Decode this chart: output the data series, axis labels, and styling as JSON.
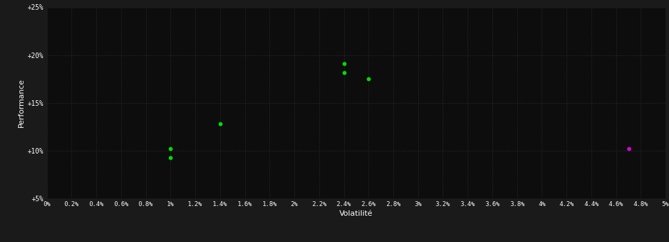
{
  "background_color": "#1a1a1a",
  "plot_bg_color": "#0d0d0d",
  "grid_color": "#333333",
  "text_color": "#ffffff",
  "xlabel": "Volatilité",
  "ylabel": "Performance",
  "xlim": [
    0.0,
    0.05
  ],
  "ylim": [
    0.05,
    0.25
  ],
  "xtick_step": 0.002,
  "ytick_vals": [
    0.05,
    0.1,
    0.15,
    0.2,
    0.25
  ],
  "ytick_labels": [
    "+5%",
    "+10%",
    "+15%",
    "+20%",
    "+25%"
  ],
  "green_points": [
    [
      0.01,
      0.102
    ],
    [
      0.01,
      0.093
    ],
    [
      0.014,
      0.128
    ],
    [
      0.024,
      0.191
    ],
    [
      0.024,
      0.182
    ],
    [
      0.026,
      0.175
    ]
  ],
  "purple_point": [
    0.047,
    0.102
  ],
  "green_color": "#00dd00",
  "purple_color": "#dd00dd",
  "point_size": 18
}
